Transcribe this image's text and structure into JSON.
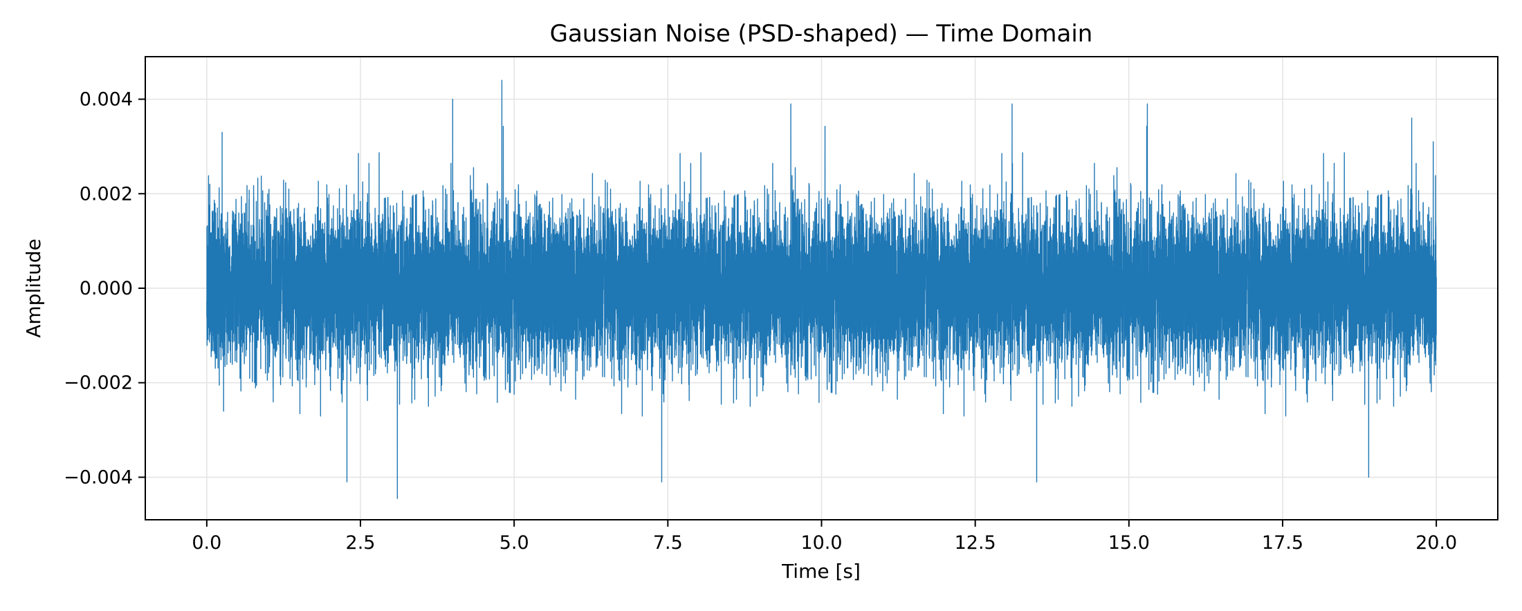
{
  "chart_data": {
    "type": "line",
    "title": "Gaussian Noise (PSD-shaped) — Time Domain",
    "xlabel": "Time [s]",
    "ylabel": "Amplitude",
    "xlim": [
      -1.0,
      21.0
    ],
    "ylim": [
      -0.0049,
      0.0049
    ],
    "x_ticks": [
      0.0,
      2.5,
      5.0,
      7.5,
      10.0,
      12.5,
      15.0,
      17.5,
      20.0
    ],
    "x_tick_labels": [
      "0.0",
      "2.5",
      "5.0",
      "7.5",
      "10.0",
      "12.5",
      "15.0",
      "17.5",
      "20.0"
    ],
    "y_ticks": [
      -0.004,
      -0.002,
      0.0,
      0.002,
      0.004
    ],
    "y_tick_labels": [
      "−0.004",
      "−0.002",
      "0.000",
      "0.002",
      "0.004"
    ],
    "grid": true,
    "series": [
      {
        "color": "#1f77b4",
        "x_start": 0.0,
        "x_end": 20.0,
        "samples": 20000,
        "mean": 0.0,
        "std": 0.0008,
        "max": 0.0044,
        "min": -0.00445,
        "peaks": [
          {
            "x": 0.05,
            "y": 0.0022
          },
          {
            "x": 0.25,
            "y": 0.0033
          },
          {
            "x": 2.28,
            "y": -0.0041
          },
          {
            "x": 3.1,
            "y": -0.00445
          },
          {
            "x": 4.0,
            "y": 0.004
          },
          {
            "x": 4.8,
            "y": 0.0044
          },
          {
            "x": 7.4,
            "y": -0.0041
          },
          {
            "x": 9.5,
            "y": 0.0039
          },
          {
            "x": 13.1,
            "y": 0.0039
          },
          {
            "x": 13.5,
            "y": -0.0041
          },
          {
            "x": 15.3,
            "y": 0.0039
          },
          {
            "x": 18.9,
            "y": -0.004
          },
          {
            "x": 19.6,
            "y": 0.0036
          },
          {
            "x": 19.95,
            "y": 0.0031
          }
        ]
      }
    ]
  }
}
